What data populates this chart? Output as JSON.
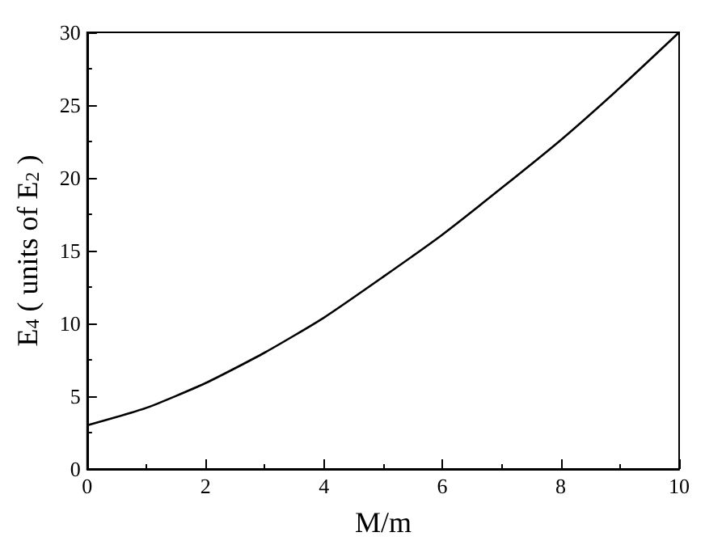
{
  "chart_data": {
    "type": "line",
    "xlabel": "M/m",
    "ylabel": "E$_{4}$ ( units of E$_{2}$ )",
    "x": [
      0,
      1,
      2,
      3,
      4,
      5,
      6,
      7,
      8,
      9,
      10
    ],
    "series": [
      {
        "color": "#000000",
        "values": [
          3.0,
          4.2,
          5.9,
          8.0,
          10.4,
          13.2,
          16.1,
          19.3,
          22.6,
          26.2,
          30.0
        ]
      }
    ],
    "xlim": [
      0,
      10
    ],
    "xticks": [
      0,
      2,
      4,
      6,
      8,
      10
    ],
    "ylim": [
      0,
      30
    ],
    "yticks": [
      0,
      5,
      10,
      15,
      20,
      25,
      30
    ],
    "grid": false,
    "marker": "none",
    "line_style": "solid"
  }
}
